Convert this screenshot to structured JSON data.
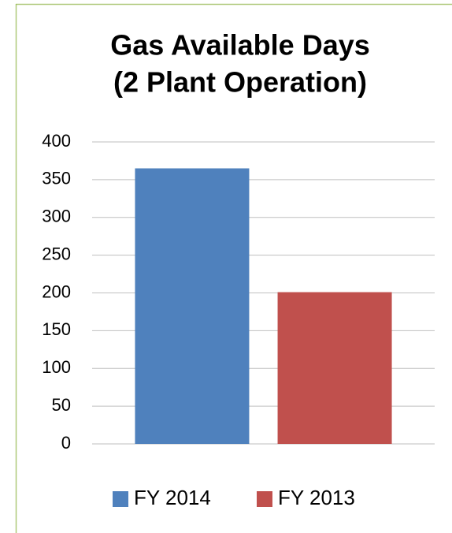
{
  "chart_data": {
    "type": "bar",
    "title": [
      "Gas Available Days",
      "(2 Plant Operation)"
    ],
    "categories": [
      null
    ],
    "series": [
      {
        "name": "FY 2014",
        "color": "#4f81bd",
        "values": [
          365
        ]
      },
      {
        "name": "FY 2013",
        "color": "#c0504d",
        "values": [
          201
        ]
      }
    ],
    "ylim": [
      0,
      400
    ],
    "yticks": [
      0,
      50,
      100,
      150,
      200,
      250,
      300,
      350,
      400
    ],
    "grid": true,
    "legend": "bottom"
  }
}
